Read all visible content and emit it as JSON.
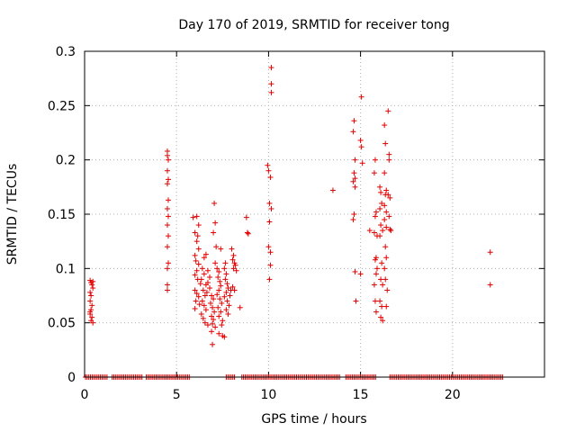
{
  "chart_data": {
    "type": "scatter",
    "title": "Day 170 of 2019, SRMTID for receiver tong",
    "xlabel": "GPS time / hours",
    "ylabel": "SRMTID / TECUs",
    "xlim": [
      0,
      25
    ],
    "ylim": [
      0,
      0.3
    ],
    "x_ticks": [
      0,
      5,
      10,
      15,
      20
    ],
    "x_tick_labels": [
      "0",
      "5",
      "10",
      "15",
      "20"
    ],
    "y_ticks": [
      0,
      0.05,
      0.1,
      0.15,
      0.2,
      0.25,
      0.3
    ],
    "y_tick_labels": [
      "0",
      "0.05",
      "0.1",
      "0.15",
      "0.2",
      "0.25",
      "0.3"
    ],
    "grid": true,
    "marker": "plus",
    "marker_color": "#e00000",
    "series": [
      {
        "name": "SRMTID",
        "points": [
          [
            0.3,
            0.089
          ],
          [
            0.35,
            0.087
          ],
          [
            0.4,
            0.085
          ],
          [
            0.45,
            0.082
          ],
          [
            0.3,
            0.078
          ],
          [
            0.35,
            0.075
          ],
          [
            0.3,
            0.07
          ],
          [
            0.4,
            0.066
          ],
          [
            0.35,
            0.062
          ],
          [
            0.3,
            0.058
          ],
          [
            0.4,
            0.055
          ],
          [
            0.35,
            0.052
          ],
          [
            0.45,
            0.05
          ],
          [
            0.3,
            0.06
          ],
          [
            0.45,
            0.088
          ],
          [
            4.5,
            0.208
          ],
          [
            4.5,
            0.204
          ],
          [
            4.55,
            0.2
          ],
          [
            4.5,
            0.19
          ],
          [
            4.55,
            0.182
          ],
          [
            4.5,
            0.178
          ],
          [
            4.55,
            0.163
          ],
          [
            4.5,
            0.155
          ],
          [
            4.55,
            0.148
          ],
          [
            4.5,
            0.14
          ],
          [
            4.55,
            0.13
          ],
          [
            4.5,
            0.12
          ],
          [
            4.55,
            0.105
          ],
          [
            4.5,
            0.1
          ],
          [
            4.5,
            0.085
          ],
          [
            4.5,
            0.08
          ],
          [
            5.9,
            0.147
          ],
          [
            6.1,
            0.148
          ],
          [
            6.2,
            0.14
          ],
          [
            6.0,
            0.133
          ],
          [
            6.15,
            0.13
          ],
          [
            6.1,
            0.125
          ],
          [
            6.2,
            0.118
          ],
          [
            6.0,
            0.112
          ],
          [
            6.05,
            0.107
          ],
          [
            6.2,
            0.104
          ],
          [
            6.1,
            0.098
          ],
          [
            6.0,
            0.094
          ],
          [
            6.15,
            0.09
          ],
          [
            6.3,
            0.086
          ],
          [
            6.0,
            0.08
          ],
          [
            6.1,
            0.077
          ],
          [
            6.2,
            0.074
          ],
          [
            6.05,
            0.07
          ],
          [
            6.25,
            0.067
          ],
          [
            6.0,
            0.063
          ],
          [
            6.4,
            0.1
          ],
          [
            6.5,
            0.095
          ],
          [
            6.35,
            0.09
          ],
          [
            6.6,
            0.085
          ],
          [
            6.45,
            0.08
          ],
          [
            6.55,
            0.075
          ],
          [
            6.4,
            0.07
          ],
          [
            6.5,
            0.066
          ],
          [
            6.6,
            0.062
          ],
          [
            6.35,
            0.058
          ],
          [
            6.45,
            0.054
          ],
          [
            6.55,
            0.05
          ],
          [
            6.7,
            0.048
          ],
          [
            6.5,
            0.11
          ],
          [
            6.6,
            0.113
          ],
          [
            6.7,
            0.098
          ],
          [
            6.8,
            0.092
          ],
          [
            6.7,
            0.087
          ],
          [
            6.8,
            0.082
          ],
          [
            6.65,
            0.078
          ],
          [
            6.9,
            0.075
          ],
          [
            7.0,
            0.072
          ],
          [
            6.85,
            0.068
          ],
          [
            6.95,
            0.064
          ],
          [
            7.05,
            0.06
          ],
          [
            6.9,
            0.056
          ],
          [
            7.0,
            0.053
          ],
          [
            6.95,
            0.049
          ],
          [
            7.1,
            0.046
          ],
          [
            6.9,
            0.042
          ],
          [
            6.95,
            0.03
          ],
          [
            7.05,
            0.16
          ],
          [
            7.1,
            0.142
          ],
          [
            7.0,
            0.133
          ],
          [
            7.15,
            0.12
          ],
          [
            7.1,
            0.105
          ],
          [
            7.2,
            0.1
          ],
          [
            7.3,
            0.097
          ],
          [
            7.25,
            0.092
          ],
          [
            7.35,
            0.088
          ],
          [
            7.4,
            0.084
          ],
          [
            7.3,
            0.08
          ],
          [
            7.2,
            0.076
          ],
          [
            7.35,
            0.072
          ],
          [
            7.45,
            0.068
          ],
          [
            7.25,
            0.064
          ],
          [
            7.4,
            0.06
          ],
          [
            7.3,
            0.056
          ],
          [
            7.5,
            0.052
          ],
          [
            7.45,
            0.048
          ],
          [
            7.3,
            0.04
          ],
          [
            7.5,
            0.038
          ],
          [
            7.6,
            0.037
          ],
          [
            7.4,
            0.118
          ],
          [
            7.6,
            0.1
          ],
          [
            7.7,
            0.095
          ],
          [
            7.65,
            0.09
          ],
          [
            7.75,
            0.086
          ],
          [
            7.8,
            0.082
          ],
          [
            7.7,
            0.078
          ],
          [
            7.6,
            0.074
          ],
          [
            7.75,
            0.07
          ],
          [
            7.85,
            0.066
          ],
          [
            7.7,
            0.062
          ],
          [
            7.8,
            0.058
          ],
          [
            7.65,
            0.105
          ],
          [
            7.9,
            0.075
          ],
          [
            7.95,
            0.08
          ],
          [
            8.0,
            0.118
          ],
          [
            8.1,
            0.112
          ],
          [
            8.05,
            0.108
          ],
          [
            8.15,
            0.105
          ],
          [
            8.2,
            0.103
          ],
          [
            8.1,
            0.1
          ],
          [
            8.25,
            0.098
          ],
          [
            8.05,
            0.083
          ],
          [
            8.15,
            0.08
          ],
          [
            8.45,
            0.064
          ],
          [
            8.8,
            0.147
          ],
          [
            8.85,
            0.133
          ],
          [
            8.9,
            0.132
          ],
          [
            9.95,
            0.195
          ],
          [
            10.0,
            0.19
          ],
          [
            10.1,
            0.184
          ],
          [
            10.05,
            0.16
          ],
          [
            10.15,
            0.155
          ],
          [
            10.05,
            0.143
          ],
          [
            10.0,
            0.12
          ],
          [
            10.1,
            0.115
          ],
          [
            10.1,
            0.103
          ],
          [
            10.05,
            0.09
          ],
          [
            10.15,
            0.285
          ],
          [
            10.15,
            0.27
          ],
          [
            10.15,
            0.262
          ],
          [
            13.5,
            0.172
          ],
          [
            14.65,
            0.236
          ],
          [
            14.6,
            0.226
          ],
          [
            14.7,
            0.2
          ],
          [
            14.65,
            0.188
          ],
          [
            14.7,
            0.183
          ],
          [
            14.6,
            0.18
          ],
          [
            14.7,
            0.175
          ],
          [
            14.65,
            0.15
          ],
          [
            14.6,
            0.145
          ],
          [
            14.7,
            0.097
          ],
          [
            14.75,
            0.07
          ],
          [
            15.05,
            0.258
          ],
          [
            15.0,
            0.218
          ],
          [
            15.05,
            0.212
          ],
          [
            15.1,
            0.197
          ],
          [
            15.0,
            0.095
          ],
          [
            15.5,
            0.135
          ],
          [
            15.8,
            0.2
          ],
          [
            15.75,
            0.188
          ],
          [
            15.85,
            0.152
          ],
          [
            15.8,
            0.148
          ],
          [
            15.75,
            0.133
          ],
          [
            15.9,
            0.13
          ],
          [
            15.85,
            0.11
          ],
          [
            15.8,
            0.108
          ],
          [
            15.9,
            0.1
          ],
          [
            15.85,
            0.095
          ],
          [
            15.75,
            0.085
          ],
          [
            15.8,
            0.07
          ],
          [
            15.85,
            0.06
          ],
          [
            16.05,
            0.175
          ],
          [
            16.1,
            0.17
          ],
          [
            16.15,
            0.16
          ],
          [
            16.05,
            0.155
          ],
          [
            16.1,
            0.14
          ],
          [
            16.2,
            0.135
          ],
          [
            16.05,
            0.13
          ],
          [
            16.15,
            0.105
          ],
          [
            16.1,
            0.09
          ],
          [
            16.2,
            0.085
          ],
          [
            16.05,
            0.07
          ],
          [
            16.15,
            0.065
          ],
          [
            16.1,
            0.055
          ],
          [
            16.2,
            0.052
          ],
          [
            16.3,
            0.232
          ],
          [
            16.35,
            0.215
          ],
          [
            16.3,
            0.188
          ],
          [
            16.4,
            0.172
          ],
          [
            16.35,
            0.168
          ],
          [
            16.3,
            0.158
          ],
          [
            16.4,
            0.152
          ],
          [
            16.3,
            0.145
          ],
          [
            16.4,
            0.138
          ],
          [
            16.35,
            0.12
          ],
          [
            16.4,
            0.11
          ],
          [
            16.3,
            0.1
          ],
          [
            16.35,
            0.09
          ],
          [
            16.45,
            0.08
          ],
          [
            16.4,
            0.065
          ],
          [
            16.5,
            0.245
          ],
          [
            16.55,
            0.205
          ],
          [
            16.55,
            0.2
          ],
          [
            16.5,
            0.168
          ],
          [
            16.6,
            0.165
          ],
          [
            16.55,
            0.148
          ],
          [
            16.6,
            0.136
          ],
          [
            16.65,
            0.135
          ],
          [
            22.05,
            0.115
          ],
          [
            22.05,
            0.085
          ]
        ],
        "zero_segments": [
          [
            0.05,
            1.3
          ],
          [
            1.5,
            3.2
          ],
          [
            3.35,
            5.7
          ],
          [
            7.7,
            8.2
          ],
          [
            8.55,
            13.9
          ],
          [
            14.2,
            15.9
          ],
          [
            16.6,
            22.8
          ]
        ]
      }
    ]
  }
}
